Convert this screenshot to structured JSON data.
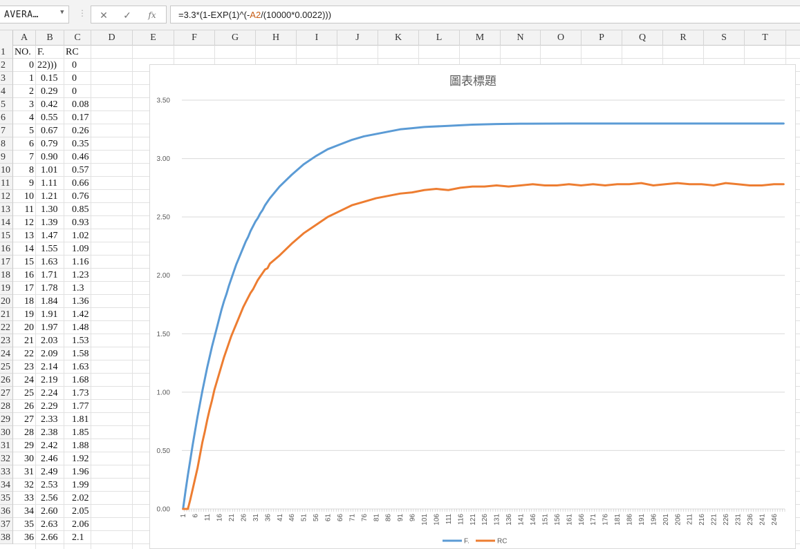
{
  "formula_bar": {
    "name_box": "AVERA…",
    "formula_prefix": "=3.3*(1-EXP(1)^(-",
    "formula_ref": "A2",
    "formula_suffix": "/(10000*0.0022)))",
    "cancel_icon": "✕",
    "enter_icon": "✓",
    "fx_label": "fx"
  },
  "columns": [
    "A",
    "B",
    "C",
    "D",
    "E",
    "F",
    "G",
    "H",
    "I",
    "J",
    "K",
    "L",
    "M",
    "N",
    "O",
    "P",
    "Q",
    "R",
    "S",
    "T"
  ],
  "rows": [
    {
      "n": "1",
      "a": "NO.",
      "b": "F.",
      "c": "RC"
    },
    {
      "n": "2",
      "a": "0",
      "b": "22)))",
      "c": "0"
    },
    {
      "n": "3",
      "a": "1",
      "b": "0.15",
      "c": "0"
    },
    {
      "n": "4",
      "a": "2",
      "b": "0.29",
      "c": "0"
    },
    {
      "n": "5",
      "a": "3",
      "b": "0.42",
      "c": "0.08"
    },
    {
      "n": "6",
      "a": "4",
      "b": "0.55",
      "c": "0.17"
    },
    {
      "n": "7",
      "a": "5",
      "b": "0.67",
      "c": "0.26"
    },
    {
      "n": "8",
      "a": "6",
      "b": "0.79",
      "c": "0.35"
    },
    {
      "n": "9",
      "a": "7",
      "b": "0.90",
      "c": "0.46"
    },
    {
      "n": "10",
      "a": "8",
      "b": "1.01",
      "c": "0.57"
    },
    {
      "n": "11",
      "a": "9",
      "b": "1.11",
      "c": "0.66"
    },
    {
      "n": "12",
      "a": "10",
      "b": "1.21",
      "c": "0.76"
    },
    {
      "n": "13",
      "a": "11",
      "b": "1.30",
      "c": "0.85"
    },
    {
      "n": "14",
      "a": "12",
      "b": "1.39",
      "c": "0.93"
    },
    {
      "n": "15",
      "a": "13",
      "b": "1.47",
      "c": "1.02"
    },
    {
      "n": "16",
      "a": "14",
      "b": "1.55",
      "c": "1.09"
    },
    {
      "n": "17",
      "a": "15",
      "b": "1.63",
      "c": "1.16"
    },
    {
      "n": "18",
      "a": "16",
      "b": "1.71",
      "c": "1.23"
    },
    {
      "n": "19",
      "a": "17",
      "b": "1.78",
      "c": "1.3"
    },
    {
      "n": "20",
      "a": "18",
      "b": "1.84",
      "c": "1.36"
    },
    {
      "n": "21",
      "a": "19",
      "b": "1.91",
      "c": "1.42"
    },
    {
      "n": "22",
      "a": "20",
      "b": "1.97",
      "c": "1.48"
    },
    {
      "n": "23",
      "a": "21",
      "b": "2.03",
      "c": "1.53"
    },
    {
      "n": "24",
      "a": "22",
      "b": "2.09",
      "c": "1.58"
    },
    {
      "n": "25",
      "a": "23",
      "b": "2.14",
      "c": "1.63"
    },
    {
      "n": "26",
      "a": "24",
      "b": "2.19",
      "c": "1.68"
    },
    {
      "n": "27",
      "a": "25",
      "b": "2.24",
      "c": "1.73"
    },
    {
      "n": "28",
      "a": "26",
      "b": "2.29",
      "c": "1.77"
    },
    {
      "n": "29",
      "a": "27",
      "b": "2.33",
      "c": "1.81"
    },
    {
      "n": "30",
      "a": "28",
      "b": "2.38",
      "c": "1.85"
    },
    {
      "n": "31",
      "a": "29",
      "b": "2.42",
      "c": "1.88"
    },
    {
      "n": "32",
      "a": "30",
      "b": "2.46",
      "c": "1.92"
    },
    {
      "n": "33",
      "a": "31",
      "b": "2.49",
      "c": "1.96"
    },
    {
      "n": "34",
      "a": "32",
      "b": "2.53",
      "c": "1.99"
    },
    {
      "n": "35",
      "a": "33",
      "b": "2.56",
      "c": "2.02"
    },
    {
      "n": "36",
      "a": "34",
      "b": "2.60",
      "c": "2.05"
    },
    {
      "n": "37",
      "a": "35",
      "b": "2.63",
      "c": "2.06"
    },
    {
      "n": "38",
      "a": "36",
      "b": "2.66",
      "c": "2.1"
    }
  ],
  "chart_data": {
    "type": "line",
    "title": "圖表標題",
    "ylim": [
      0,
      3.5
    ],
    "y_ticks": [
      "0.00",
      "0.50",
      "1.00",
      "1.50",
      "2.00",
      "2.50",
      "3.00",
      "3.50"
    ],
    "x_ticks": [
      "1",
      "6",
      "11",
      "16",
      "21",
      "26",
      "31",
      "36",
      "41",
      "46",
      "51",
      "56",
      "61",
      "66",
      "71",
      "76",
      "81",
      "86",
      "91",
      "96",
      "101",
      "106",
      "111",
      "116",
      "121",
      "126",
      "131",
      "136",
      "141",
      "146",
      "151",
      "156",
      "161",
      "166",
      "171",
      "176",
      "181",
      "186",
      "191",
      "196",
      "201",
      "206",
      "211",
      "216",
      "221",
      "226",
      "231",
      "236",
      "241",
      "246"
    ],
    "x_count": 250,
    "grid": true,
    "legend_position": "bottom",
    "series": [
      {
        "name": "F.",
        "color": "#5b9bd5",
        "points": [
          [
            1,
            0
          ],
          [
            2,
            0.15
          ],
          [
            3,
            0.29
          ],
          [
            4,
            0.42
          ],
          [
            5,
            0.55
          ],
          [
            6,
            0.67
          ],
          [
            7,
            0.79
          ],
          [
            8,
            0.9
          ],
          [
            9,
            1.01
          ],
          [
            10,
            1.11
          ],
          [
            11,
            1.21
          ],
          [
            12,
            1.3
          ],
          [
            13,
            1.39
          ],
          [
            14,
            1.47
          ],
          [
            15,
            1.55
          ],
          [
            16,
            1.63
          ],
          [
            17,
            1.71
          ],
          [
            18,
            1.78
          ],
          [
            19,
            1.84
          ],
          [
            20,
            1.91
          ],
          [
            21,
            1.97
          ],
          [
            22,
            2.03
          ],
          [
            23,
            2.09
          ],
          [
            24,
            2.14
          ],
          [
            25,
            2.19
          ],
          [
            26,
            2.24
          ],
          [
            27,
            2.29
          ],
          [
            28,
            2.33
          ],
          [
            29,
            2.38
          ],
          [
            30,
            2.42
          ],
          [
            31,
            2.46
          ],
          [
            32,
            2.49
          ],
          [
            33,
            2.53
          ],
          [
            34,
            2.56
          ],
          [
            35,
            2.6
          ],
          [
            36,
            2.63
          ],
          [
            37,
            2.66
          ],
          [
            41,
            2.76
          ],
          [
            46,
            2.86
          ],
          [
            51,
            2.95
          ],
          [
            56,
            3.02
          ],
          [
            61,
            3.08
          ],
          [
            66,
            3.12
          ],
          [
            71,
            3.16
          ],
          [
            76,
            3.19
          ],
          [
            81,
            3.21
          ],
          [
            86,
            3.23
          ],
          [
            91,
            3.25
          ],
          [
            96,
            3.26
          ],
          [
            101,
            3.27
          ],
          [
            111,
            3.28
          ],
          [
            121,
            3.29
          ],
          [
            131,
            3.295
          ],
          [
            141,
            3.298
          ],
          [
            161,
            3.3
          ],
          [
            200,
            3.3
          ],
          [
            250,
            3.3
          ]
        ]
      },
      {
        "name": "RC",
        "color": "#ed7d31",
        "points": [
          [
            1,
            0
          ],
          [
            2,
            0
          ],
          [
            3,
            0
          ],
          [
            4,
            0.08
          ],
          [
            5,
            0.17
          ],
          [
            6,
            0.26
          ],
          [
            7,
            0.35
          ],
          [
            8,
            0.46
          ],
          [
            9,
            0.57
          ],
          [
            10,
            0.66
          ],
          [
            11,
            0.76
          ],
          [
            12,
            0.85
          ],
          [
            13,
            0.93
          ],
          [
            14,
            1.02
          ],
          [
            15,
            1.09
          ],
          [
            16,
            1.16
          ],
          [
            17,
            1.23
          ],
          [
            18,
            1.3
          ],
          [
            19,
            1.36
          ],
          [
            20,
            1.42
          ],
          [
            21,
            1.48
          ],
          [
            22,
            1.53
          ],
          [
            23,
            1.58
          ],
          [
            24,
            1.63
          ],
          [
            25,
            1.68
          ],
          [
            26,
            1.73
          ],
          [
            27,
            1.77
          ],
          [
            28,
            1.81
          ],
          [
            29,
            1.85
          ],
          [
            30,
            1.88
          ],
          [
            31,
            1.92
          ],
          [
            32,
            1.96
          ],
          [
            33,
            1.99
          ],
          [
            34,
            2.02
          ],
          [
            35,
            2.05
          ],
          [
            36,
            2.06
          ],
          [
            37,
            2.1
          ],
          [
            41,
            2.17
          ],
          [
            46,
            2.27
          ],
          [
            51,
            2.36
          ],
          [
            56,
            2.43
          ],
          [
            61,
            2.5
          ],
          [
            66,
            2.55
          ],
          [
            71,
            2.6
          ],
          [
            76,
            2.63
          ],
          [
            81,
            2.66
          ],
          [
            86,
            2.68
          ],
          [
            91,
            2.7
          ],
          [
            96,
            2.71
          ],
          [
            101,
            2.73
          ],
          [
            106,
            2.74
          ],
          [
            111,
            2.73
          ],
          [
            116,
            2.75
          ],
          [
            121,
            2.76
          ],
          [
            126,
            2.76
          ],
          [
            131,
            2.77
          ],
          [
            136,
            2.76
          ],
          [
            141,
            2.77
          ],
          [
            146,
            2.78
          ],
          [
            151,
            2.77
          ],
          [
            156,
            2.77
          ],
          [
            161,
            2.78
          ],
          [
            166,
            2.77
          ],
          [
            171,
            2.78
          ],
          [
            176,
            2.77
          ],
          [
            181,
            2.78
          ],
          [
            186,
            2.78
          ],
          [
            191,
            2.79
          ],
          [
            196,
            2.77
          ],
          [
            201,
            2.78
          ],
          [
            206,
            2.79
          ],
          [
            211,
            2.78
          ],
          [
            216,
            2.78
          ],
          [
            221,
            2.77
          ],
          [
            226,
            2.79
          ],
          [
            231,
            2.78
          ],
          [
            236,
            2.77
          ],
          [
            241,
            2.77
          ],
          [
            246,
            2.78
          ],
          [
            250,
            2.78
          ]
        ]
      }
    ]
  }
}
